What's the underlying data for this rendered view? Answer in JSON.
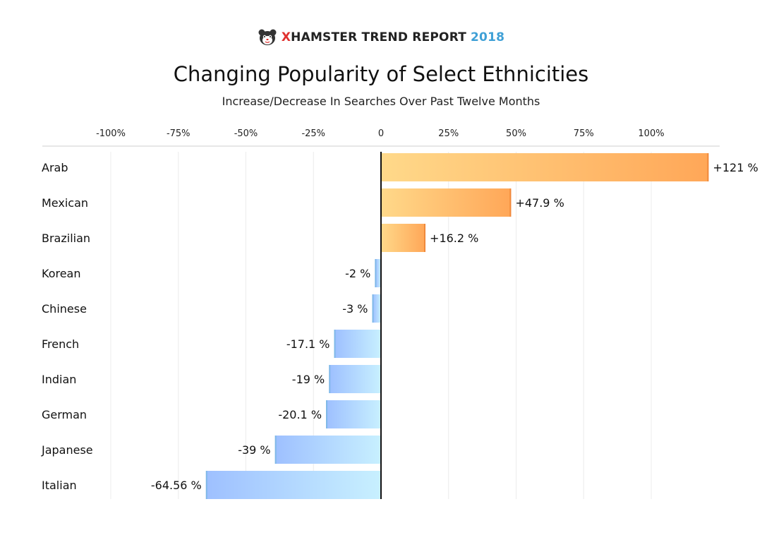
{
  "header": {
    "brand_x": "X",
    "brand_main": "HAMSTER TREND REPORT",
    "brand_year": "2018",
    "logo_icon": "hamster-icon"
  },
  "chart_data": {
    "type": "bar",
    "orientation": "horizontal",
    "title": "Changing Popularity of Select Ethnicities",
    "subtitle": "Increase/Decrease In Searches Over Past Twelve Months",
    "xlabel": "",
    "ylabel": "",
    "categories": [
      "Arab",
      "Mexican",
      "Brazilian",
      "Korean",
      "Chinese",
      "French",
      "Indian",
      "German",
      "Japanese",
      "Italian"
    ],
    "values": [
      121,
      47.9,
      16.2,
      -2,
      -3,
      -17.1,
      -19,
      -20.1,
      -39,
      -64.56
    ],
    "data_labels": [
      "+121 %",
      "+47.9 %",
      "+16.2 %",
      "-2 %",
      "-3 %",
      "-17.1 %",
      "-19 %",
      "-20.1 %",
      "-39 %",
      "-64.56 %"
    ],
    "x_ticks": [
      -100,
      -75,
      -50,
      -25,
      0,
      25,
      50,
      75,
      100
    ],
    "x_tick_labels": [
      "-100%",
      "-75%",
      "-50%",
      "-25%",
      "0",
      "25%",
      "50%",
      "75%",
      "100%"
    ],
    "xlim": [
      -100,
      125
    ],
    "grid": true,
    "colors": {
      "positive_light": "#ffd98a",
      "positive_dark": "#ffa758",
      "negative_light": "#c8f0ff",
      "negative_dark": "#9ec0ff"
    }
  }
}
